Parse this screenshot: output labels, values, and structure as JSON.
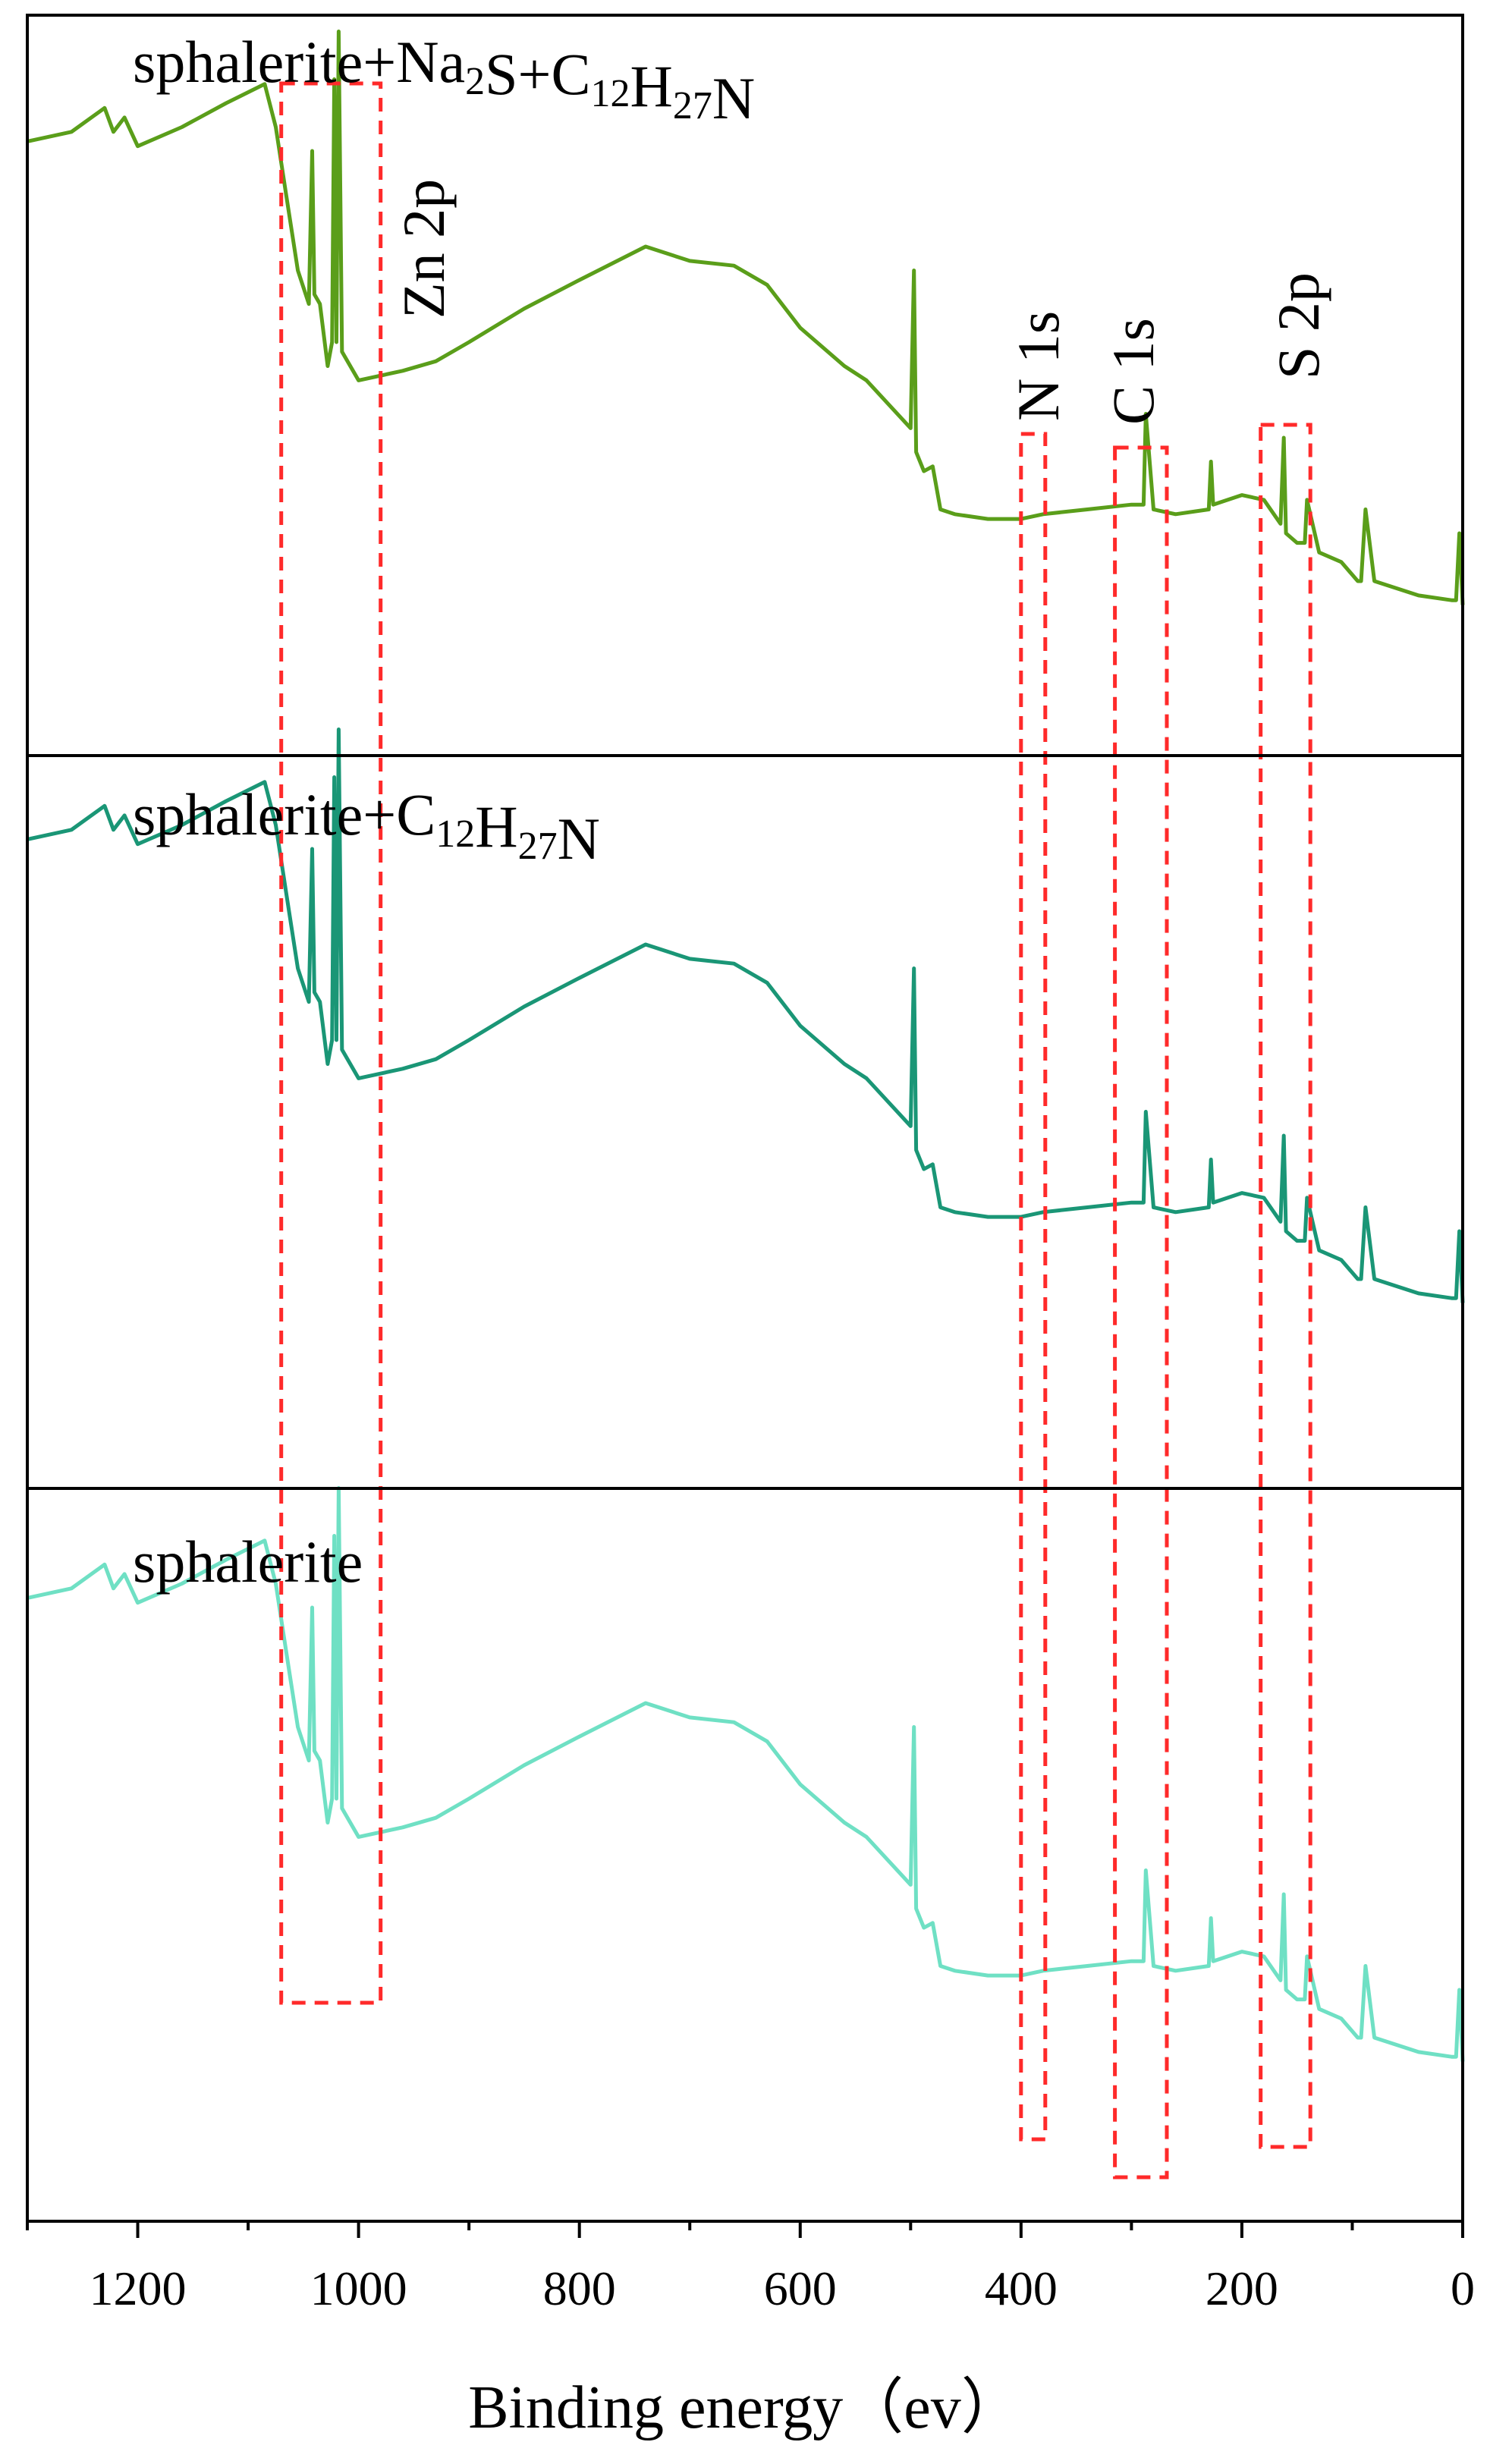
{
  "chart_data": {
    "type": "line",
    "xlabel": "Binding energy（ev）",
    "xlim": [
      1300,
      0
    ],
    "x_reversed": true,
    "x_ticks": [
      1200,
      1000,
      800,
      600,
      400,
      200,
      0
    ],
    "ylabel": "",
    "y_ticks_shown": false,
    "grid": false,
    "legend": "none",
    "panels": [
      {
        "label": "sphalerite+Na₂S+C₁₂H₂₇N",
        "label_parts": [
          {
            "t": "sphalerite+Na"
          },
          {
            "t": "2",
            "sub": true
          },
          {
            "t": "S+C"
          },
          {
            "t": "12",
            "sub": true
          },
          {
            "t": "H"
          },
          {
            "t": "27",
            "sub": true
          },
          {
            "t": "N"
          }
        ],
        "color": "#5a9e1a",
        "style": "solid",
        "x": [
          1300,
          1260,
          1230,
          1222,
          1212,
          1200,
          1160,
          1120,
          1085,
          1075,
          1065,
          1055,
          1045,
          1042,
          1040,
          1035,
          1028,
          1024,
          1022,
          1020,
          1018,
          1015,
          1000,
          960,
          930,
          900,
          850,
          800,
          740,
          700,
          660,
          630,
          600,
          585,
          560,
          540,
          520,
          500,
          497,
          495,
          488,
          480,
          473,
          460,
          430,
          400,
          380,
          340,
          300,
          289,
          287,
          280,
          260,
          230,
          228,
          226,
          200,
          180,
          165,
          162,
          160,
          150,
          143,
          141,
          130,
          110,
          95,
          92,
          88,
          80,
          40,
          10,
          6,
          3,
          0
        ],
        "y": [
          72,
          74,
          79,
          74,
          77,
          71,
          75,
          80,
          84,
          75,
          60,
          45,
          38,
          70,
          40,
          38,
          25,
          30,
          85,
          30,
          95,
          28,
          22,
          24,
          26,
          30,
          37,
          43,
          50,
          47,
          46,
          42,
          33,
          30,
          25,
          22,
          17,
          12,
          45,
          7,
          3,
          4,
          -5,
          -6,
          -7,
          -7,
          -6,
          -5,
          -4,
          -4,
          15,
          -5,
          -6,
          -5,
          5,
          -4,
          -2,
          -3,
          -8,
          10,
          -10,
          -12,
          -12,
          -3,
          -14,
          -16,
          -20,
          -20,
          -5,
          -20,
          -23,
          -24,
          -24,
          -10,
          -25
        ],
        "annotations": [
          {
            "text": "Zn 2p",
            "x": 930
          },
          {
            "text": "N 1s",
            "x": 388
          },
          {
            "text": "C 1s",
            "x": 292
          },
          {
            "text": "S 2p",
            "x": 160
          }
        ]
      },
      {
        "label": "sphalerite+C₁₂H₂₇N",
        "label_parts": [
          {
            "t": "sphalerite+C"
          },
          {
            "t": "12",
            "sub": true
          },
          {
            "t": "H"
          },
          {
            "t": "27",
            "sub": true
          },
          {
            "t": "N"
          }
        ],
        "color": "#1a9676",
        "style": "dotted-peaks",
        "x": [
          1300,
          1260,
          1230,
          1222,
          1212,
          1200,
          1160,
          1120,
          1085,
          1075,
          1065,
          1055,
          1045,
          1042,
          1040,
          1035,
          1028,
          1024,
          1022,
          1020,
          1018,
          1015,
          1000,
          960,
          930,
          900,
          850,
          800,
          740,
          700,
          660,
          630,
          600,
          585,
          560,
          540,
          520,
          500,
          497,
          495,
          488,
          480,
          473,
          460,
          430,
          400,
          380,
          340,
          300,
          289,
          287,
          280,
          260,
          230,
          228,
          226,
          200,
          180,
          165,
          162,
          160,
          150,
          143,
          141,
          130,
          110,
          95,
          92,
          88,
          80,
          40,
          10,
          6,
          3,
          0
        ],
        "y": [
          72,
          74,
          79,
          74,
          77,
          71,
          75,
          80,
          84,
          75,
          60,
          45,
          38,
          70,
          40,
          38,
          25,
          30,
          85,
          30,
          95,
          28,
          22,
          24,
          26,
          30,
          37,
          43,
          50,
          47,
          46,
          42,
          33,
          30,
          25,
          22,
          17,
          12,
          45,
          7,
          3,
          4,
          -5,
          -6,
          -7,
          -7,
          -6,
          -5,
          -4,
          -4,
          15,
          -5,
          -6,
          -5,
          5,
          -4,
          -2,
          -3,
          -8,
          10,
          -10,
          -12,
          -12,
          -3,
          -14,
          -16,
          -20,
          -20,
          -5,
          -20,
          -23,
          -24,
          -24,
          -10,
          -25
        ]
      },
      {
        "label": "sphalerite",
        "label_parts": [
          {
            "t": "sphalerite"
          }
        ],
        "color": "#6fe0c4",
        "style": "solid",
        "x": [
          1300,
          1260,
          1230,
          1222,
          1212,
          1200,
          1160,
          1120,
          1085,
          1075,
          1065,
          1055,
          1045,
          1042,
          1040,
          1035,
          1028,
          1024,
          1022,
          1020,
          1018,
          1015,
          1000,
          960,
          930,
          900,
          850,
          800,
          740,
          700,
          660,
          630,
          600,
          585,
          560,
          540,
          520,
          500,
          497,
          495,
          488,
          480,
          473,
          460,
          430,
          400,
          380,
          340,
          300,
          289,
          287,
          280,
          260,
          230,
          228,
          226,
          200,
          180,
          165,
          162,
          160,
          150,
          143,
          141,
          130,
          110,
          95,
          92,
          88,
          80,
          40,
          10,
          6,
          3,
          0
        ],
        "y": [
          72,
          74,
          79,
          74,
          77,
          71,
          75,
          80,
          84,
          75,
          60,
          45,
          38,
          70,
          40,
          38,
          25,
          30,
          85,
          30,
          95,
          28,
          22,
          24,
          26,
          30,
          37,
          43,
          50,
          47,
          46,
          42,
          33,
          30,
          25,
          22,
          17,
          12,
          45,
          7,
          3,
          4,
          -5,
          -6,
          -7,
          -7,
          -6,
          -5,
          -4,
          -4,
          15,
          -5,
          -6,
          -5,
          5,
          -4,
          -2,
          -3,
          -8,
          10,
          -10,
          -12,
          -12,
          -3,
          -14,
          -16,
          -20,
          -20,
          -5,
          -20,
          -23,
          -24,
          -24,
          -10,
          -25
        ]
      }
    ],
    "highlight_regions": [
      {
        "name": "Zn 2p",
        "x": [
          1070,
          980
        ]
      },
      {
        "name": "N 1s",
        "x": [
          400,
          378
        ]
      },
      {
        "name": "C 1s",
        "x": [
          315,
          268
        ]
      },
      {
        "name": "S 2p",
        "x": [
          183,
          138
        ]
      }
    ]
  },
  "colors": {
    "axis": "#000000",
    "highlight_box": "#ff2a2a"
  }
}
